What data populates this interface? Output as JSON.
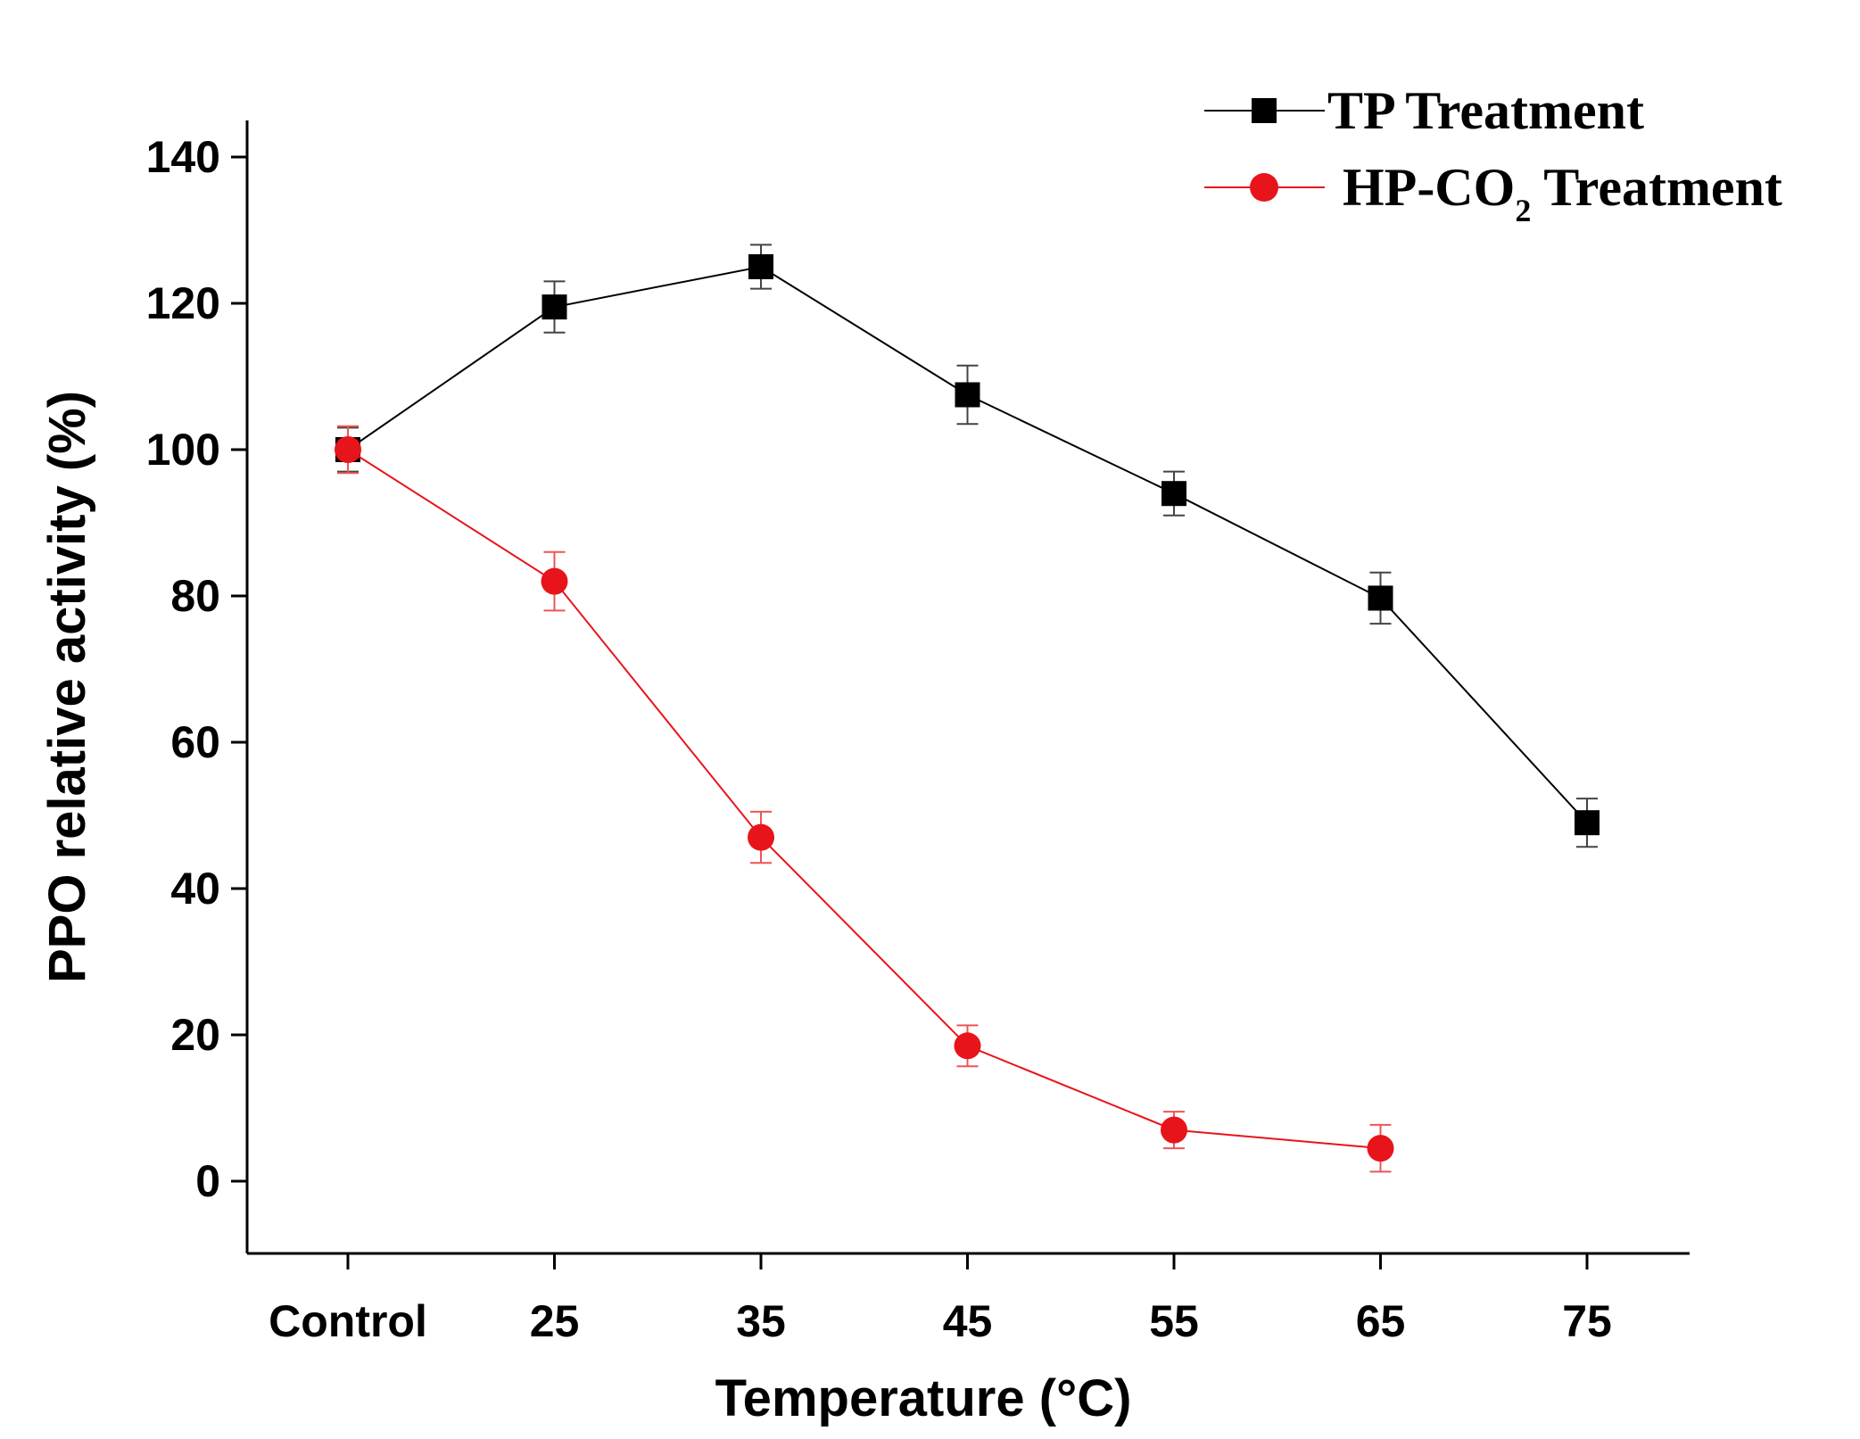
{
  "chart_data": {
    "type": "line",
    "categories": [
      "Control",
      "25",
      "35",
      "45",
      "55",
      "65",
      "75"
    ],
    "xlabel": "Temperature (°C)",
    "ylabel": "PPO relative activity (%)",
    "ylim": [
      -10,
      145
    ],
    "yticks": [
      0,
      20,
      40,
      60,
      80,
      100,
      120,
      140
    ],
    "legend_position": "top-right",
    "grid": false,
    "series": [
      {
        "name": "TP Treatment",
        "legend_main": "TP Treatment",
        "color": "#000000",
        "marker": "square",
        "values": [
          100,
          119.5,
          125,
          107.5,
          94,
          79.7,
          49
        ],
        "errors": [
          3,
          3.5,
          3,
          4,
          3,
          3.5,
          3.3
        ]
      },
      {
        "name": "HP-CO2 Treatment",
        "legend_pre": "HP-CO",
        "legend_sub": "2",
        "legend_post": " Treatment",
        "color": "#e8141b",
        "marker": "circle",
        "values": [
          100,
          82,
          47,
          18.5,
          7,
          4.5,
          null
        ],
        "errors": [
          3.2,
          4,
          3.5,
          2.8,
          2.5,
          3.2,
          null
        ]
      }
    ]
  }
}
